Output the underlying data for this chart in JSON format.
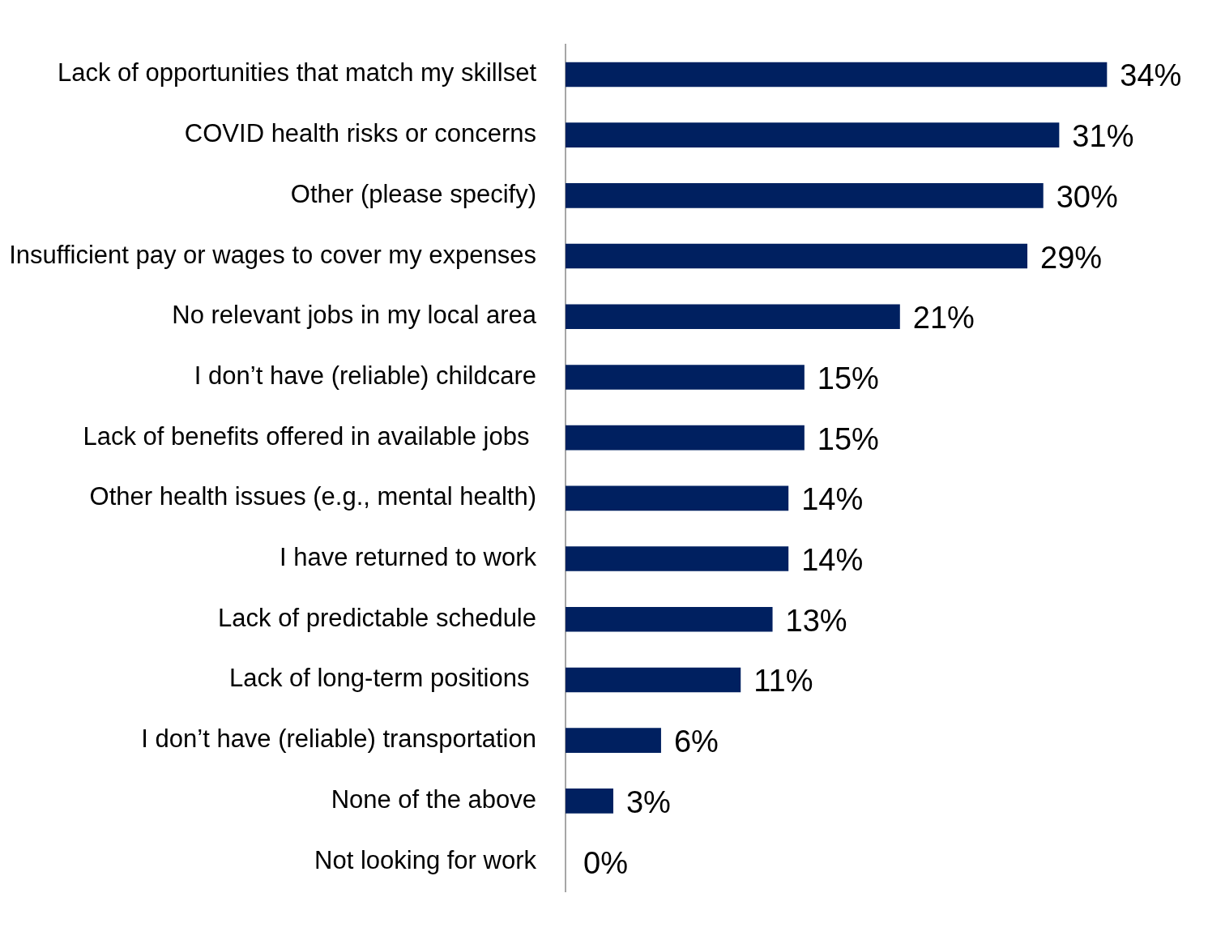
{
  "chart_data": {
    "type": "bar",
    "orientation": "horizontal",
    "categories": [
      "Lack of opportunities that match my skillset",
      "COVID health risks or concerns",
      "Other (please specify)",
      "Insufficient pay or wages to cover my expenses",
      "No relevant jobs in my local area",
      "I don’t have (reliable) childcare",
      "Lack of benefits offered in available jobs ",
      "Other health issues (e.g., mental health)",
      "I have returned to work",
      "Lack of predictable schedule",
      "Lack of long-term positions ",
      "I don’t have (reliable) transportation",
      "None of the above",
      "Not looking for work"
    ],
    "values": [
      34,
      31,
      30,
      29,
      21,
      15,
      15,
      14,
      14,
      13,
      11,
      6,
      3,
      0
    ],
    "value_labels": [
      "34%",
      "31%",
      "30%",
      "29%",
      "21%",
      "15%",
      "15%",
      "14%",
      "14%",
      "13%",
      "11%",
      "6%",
      "3%",
      "0%"
    ],
    "color": "#002060"
  }
}
